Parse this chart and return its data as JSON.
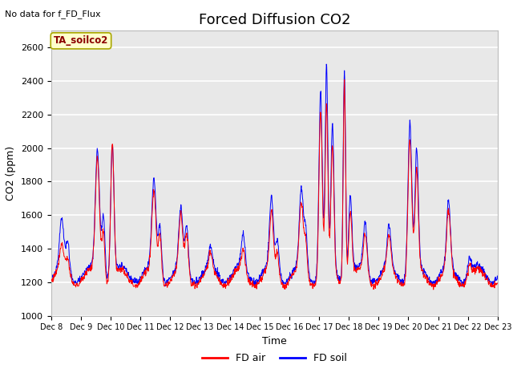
{
  "title": "Forced Diffusion CO2",
  "subtitle": "No data for f_FD_Flux",
  "ylabel": "CO2 (ppm)",
  "xlabel": "Time",
  "ylim": [
    1000,
    2700
  ],
  "yticks": [
    1000,
    1200,
    1400,
    1600,
    1800,
    2000,
    2200,
    2400,
    2600
  ],
  "xtick_labels": [
    "Dec 8",
    "Dec 9",
    "Dec 10",
    "Dec 11",
    "Dec 12",
    "Dec 13",
    "Dec 14",
    "Dec 15",
    "Dec 16",
    "Dec 17",
    "Dec 18",
    "Dec 19",
    "Dec 20",
    "Dec 21",
    "Dec 22",
    "Dec 23"
  ],
  "annotation_box": "TA_soilco2",
  "legend": [
    "FD air",
    "FD soil"
  ],
  "line_colors": [
    "red",
    "blue"
  ],
  "bg_color": "#e8e8e8",
  "grid_color": "white",
  "title_fontsize": 13,
  "label_fontsize": 9,
  "tick_fontsize": 8,
  "annotation_facecolor": "#ffffcc",
  "annotation_edgecolor": "#aaa800",
  "annotation_textcolor": "#8b0000"
}
